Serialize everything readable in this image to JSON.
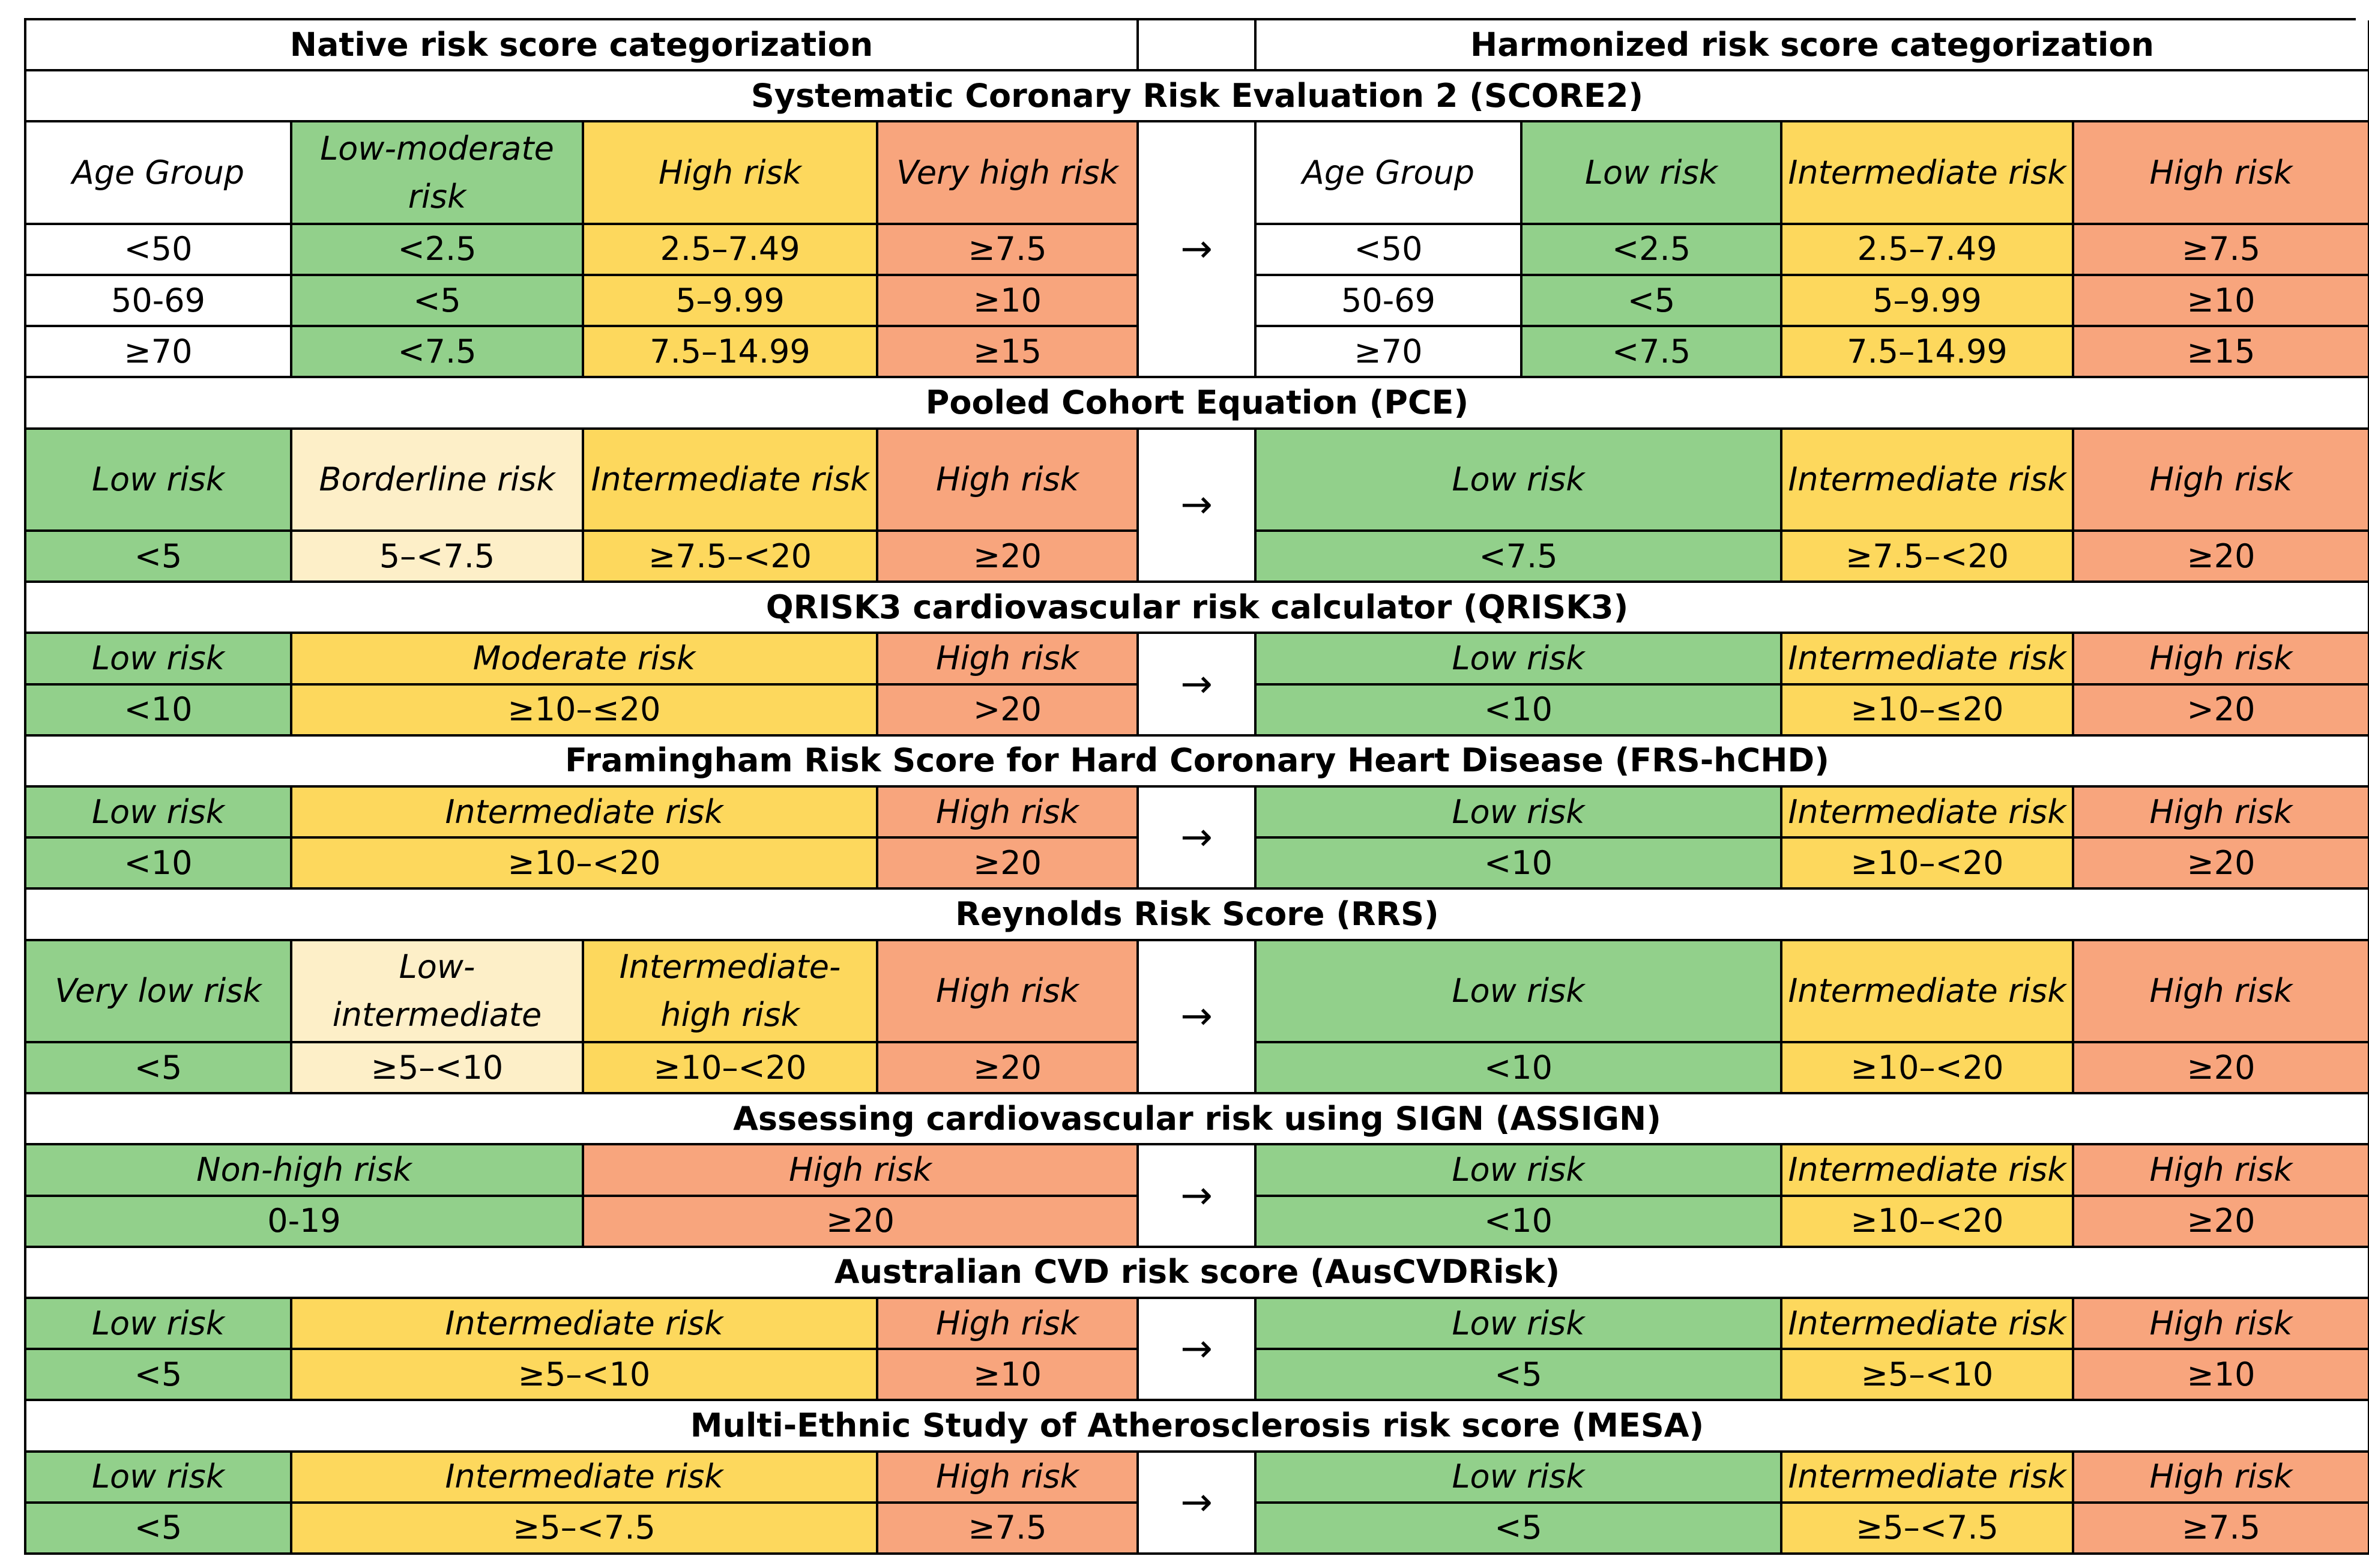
{
  "header": {
    "native": "Native risk score categorization",
    "harmonized": "Harmonized risk score categorization"
  },
  "arrow": "→",
  "colors": {
    "low": "#92d08b",
    "intermediate": "#fdd85d",
    "high": "#f8a57d",
    "borderline": "#fdefc8"
  },
  "score2": {
    "title": "Systematic Coronary Risk Evaluation 2 (SCORE2)",
    "native_headers": [
      "Age Group",
      "Low-moderate risk",
      "High risk",
      "Very high risk"
    ],
    "native_rows": [
      [
        "<50",
        "<2.5",
        "2.5–7.49",
        "≥7.5"
      ],
      [
        "50-69",
        "<5",
        "5–9.99",
        "≥10"
      ],
      [
        "≥70",
        "<7.5",
        "7.5–14.99",
        "≥15"
      ]
    ],
    "harm_headers": [
      "Age Group",
      "Low risk",
      "Intermediate risk",
      "High risk"
    ],
    "harm_rows": [
      [
        "<50",
        "<2.5",
        "2.5–7.49",
        "≥7.5"
      ],
      [
        "50-69",
        "<5",
        "5–9.99",
        "≥10"
      ],
      [
        "≥70",
        "<7.5",
        "7.5–14.99",
        "≥15"
      ]
    ]
  },
  "pce": {
    "title": "Pooled Cohort Equation (PCE)",
    "native_headers": [
      "Low risk",
      "Borderline risk",
      "Intermediate risk",
      "High risk"
    ],
    "native_values": [
      "<5",
      "5–<7.5",
      "≥7.5–<20",
      "≥20"
    ],
    "harm_headers": [
      "Low risk",
      "Intermediate risk",
      "High risk"
    ],
    "harm_values": [
      "<7.5",
      "≥7.5–<20",
      "≥20"
    ]
  },
  "qrisk3": {
    "title": "QRISK3 cardiovascular risk calculator (QRISK3)",
    "native_headers": [
      "Low risk",
      "Moderate risk",
      "High risk"
    ],
    "native_values": [
      "<10",
      "≥10–≤20",
      ">20"
    ],
    "harm_headers": [
      "Low risk",
      "Intermediate risk",
      "High risk"
    ],
    "harm_values": [
      "<10",
      "≥10–≤20",
      ">20"
    ]
  },
  "frs": {
    "title": "Framingham Risk Score for Hard Coronary Heart Disease (FRS-hCHD)",
    "native_headers": [
      "Low risk",
      "Intermediate risk",
      "High risk"
    ],
    "native_values": [
      "<10",
      "≥10–<20",
      "≥20"
    ],
    "harm_headers": [
      "Low risk",
      "Intermediate risk",
      "High risk"
    ],
    "harm_values": [
      "<10",
      "≥10–<20",
      "≥20"
    ]
  },
  "rrs": {
    "title": "Reynolds Risk Score (RRS)",
    "native_headers": [
      "Very low risk",
      "Low-intermediate",
      "Intermediate-high risk",
      "High risk"
    ],
    "native_values": [
      "<5",
      "≥5–<10",
      "≥10–<20",
      "≥20"
    ],
    "harm_headers": [
      "Low risk",
      "Intermediate risk",
      "High risk"
    ],
    "harm_values": [
      "<10",
      "≥10–<20",
      "≥20"
    ]
  },
  "assign": {
    "title": "Assessing cardiovascular risk using SIGN (ASSIGN)",
    "native_headers": [
      "Non-high risk",
      "High risk"
    ],
    "native_values": [
      "0-19",
      "≥20"
    ],
    "harm_headers": [
      "Low risk",
      "Intermediate risk",
      "High risk"
    ],
    "harm_values": [
      "<10",
      "≥10–<20",
      "≥20"
    ]
  },
  "aus": {
    "title": "Australian CVD risk score (AusCVDRisk)",
    "native_headers": [
      "Low risk",
      "Intermediate risk",
      "High risk"
    ],
    "native_values": [
      "<5",
      "≥5–<10",
      "≥10"
    ],
    "harm_headers": [
      "Low risk",
      "Intermediate risk",
      "High risk"
    ],
    "harm_values": [
      "<5",
      "≥5–<10",
      "≥10"
    ]
  },
  "mesa": {
    "title": "Multi-Ethnic Study of Atherosclerosis risk score (MESA)",
    "native_headers": [
      "Low risk",
      "Intermediate risk",
      "High risk"
    ],
    "native_values": [
      "<5",
      "≥5–<7.5",
      "≥7.5"
    ],
    "harm_headers": [
      "Low risk",
      "Intermediate risk",
      "High risk"
    ],
    "harm_values": [
      "<5",
      "≥5–<7.5",
      "≥7.5"
    ]
  }
}
